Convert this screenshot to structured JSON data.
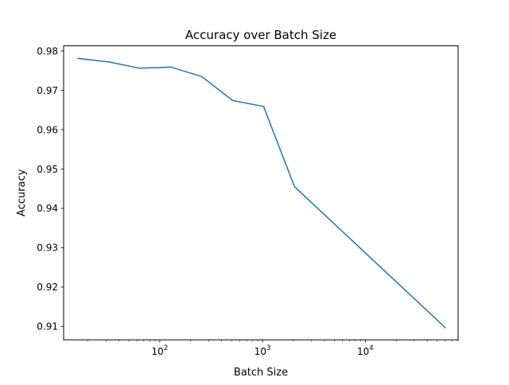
{
  "chart_data": {
    "type": "line",
    "title": "Accuracy over Batch Size",
    "xlabel": "Batch Size",
    "ylabel": "Accuracy",
    "xscale": "log",
    "xlim": [
      11.6,
      80000
    ],
    "ylim": [
      0.9066,
      0.9813
    ],
    "x_ticks": [
      {
        "value": 100,
        "base": "10",
        "exp": "2"
      },
      {
        "value": 1000,
        "base": "10",
        "exp": "3"
      },
      {
        "value": 10000,
        "base": "10",
        "exp": "4"
      }
    ],
    "y_ticks": [
      {
        "value": 0.91,
        "label": "0.91"
      },
      {
        "value": 0.92,
        "label": "0.92"
      },
      {
        "value": 0.93,
        "label": "0.93"
      },
      {
        "value": 0.94,
        "label": "0.94"
      },
      {
        "value": 0.95,
        "label": "0.95"
      },
      {
        "value": 0.96,
        "label": "0.96"
      },
      {
        "value": 0.97,
        "label": "0.97"
      },
      {
        "value": 0.98,
        "label": "0.98"
      }
    ],
    "grid": false,
    "series": [
      {
        "color": "#1f77b4",
        "x": [
          16,
          32,
          64,
          128,
          256,
          512,
          1024,
          2048,
          60000
        ],
        "y": [
          0.9781,
          0.9772,
          0.9756,
          0.9759,
          0.9735,
          0.9674,
          0.9659,
          0.9455,
          0.9097
        ]
      }
    ]
  }
}
